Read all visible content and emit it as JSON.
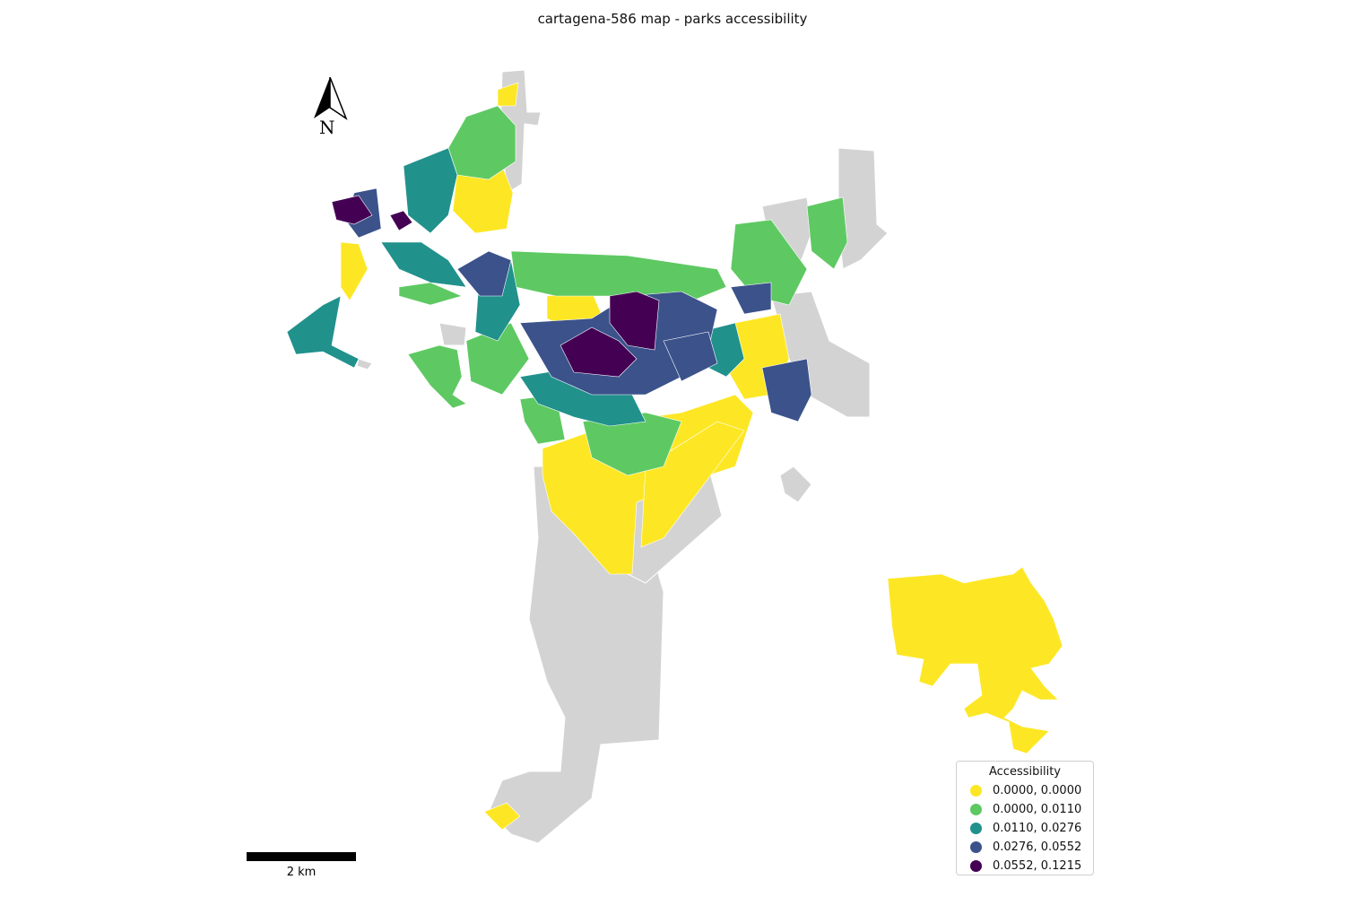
{
  "title": "cartagena-586 map - parks accessibility",
  "north_arrow": {
    "icon": "north-arrow-icon",
    "letter": "N"
  },
  "scale_bar": {
    "label": "2 km"
  },
  "legend": {
    "title": "Accessibility",
    "items": [
      {
        "label": "0.0000, 0.0000",
        "color": "#fde725"
      },
      {
        "label": "0.0000, 0.0110",
        "color": "#5ec962"
      },
      {
        "label": "0.0110, 0.0276",
        "color": "#21918c"
      },
      {
        "label": "0.0276, 0.0552",
        "color": "#3b528b"
      },
      {
        "label": "0.0552, 0.1215",
        "color": "#440154"
      }
    ]
  },
  "colors": {
    "no_data": "#d3d3d3",
    "background": "#ffffff"
  }
}
